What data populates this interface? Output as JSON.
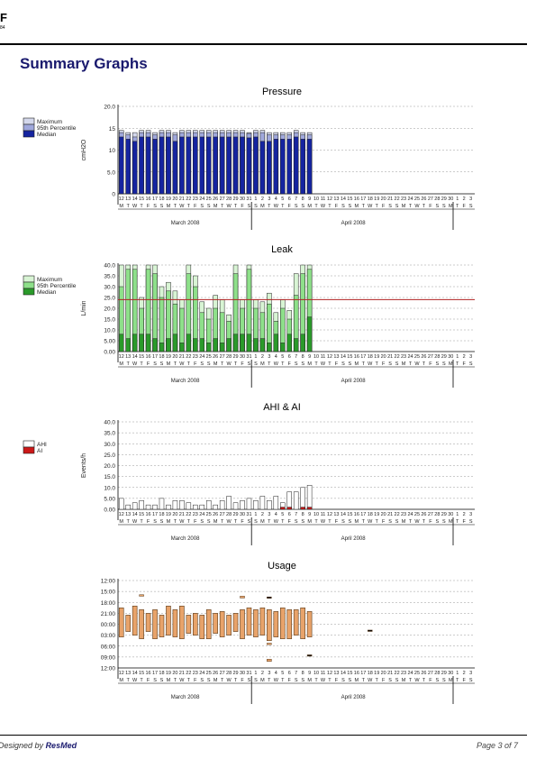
{
  "header": {
    "mark": "F",
    "sub": "84"
  },
  "page_title": "Summary Graphs",
  "footer": {
    "designed_by": "Designed by",
    "brand": "ResMed",
    "page": "Page 3 of 7"
  },
  "axis": {
    "days": [
      "12",
      "13",
      "14",
      "15",
      "16",
      "17",
      "18",
      "19",
      "20",
      "21",
      "22",
      "23",
      "24",
      "25",
      "26",
      "27",
      "28",
      "29",
      "30",
      "31",
      "1",
      "2",
      "3",
      "4",
      "5",
      "6",
      "7",
      "8",
      "9",
      "10",
      "11",
      "12",
      "13",
      "14",
      "15",
      "16",
      "17",
      "18",
      "19",
      "20",
      "21",
      "22",
      "23",
      "24",
      "25",
      "26",
      "27",
      "28",
      "29",
      "30",
      "1",
      "2",
      "3"
    ],
    "weekdays": [
      "M",
      "T",
      "W",
      "T",
      "F",
      "S",
      "S",
      "M",
      "T",
      "W",
      "T",
      "F",
      "S",
      "S",
      "M",
      "T",
      "W",
      "T",
      "F",
      "S",
      "S",
      "M",
      "T",
      "W",
      "T",
      "F",
      "S",
      "S",
      "M",
      "T",
      "W",
      "T",
      "F",
      "S",
      "S",
      "M",
      "T",
      "W",
      "T",
      "F",
      "S",
      "S",
      "M",
      "T",
      "W",
      "T",
      "F",
      "S",
      "S",
      "M",
      "T",
      "F",
      "S"
    ],
    "month1": "March 2008",
    "month2": "April 2008"
  },
  "chart_data": [
    {
      "type": "bar",
      "title": "Pressure",
      "ylabel": "cmH2O",
      "ylim": [
        0,
        20
      ],
      "yticks": [
        "0",
        "5.0",
        "10",
        "15",
        "20.0"
      ],
      "legend": [
        "Maximum",
        "95th Percentile",
        "Median"
      ],
      "colors": [
        "#d4d8ec",
        "#a0a8dc",
        "#1524a0"
      ],
      "series": [
        {
          "name": "Maximum",
          "values": [
            14.5,
            14,
            14,
            14.5,
            14.5,
            14,
            14.5,
            14.5,
            14,
            14.5,
            14.5,
            14.5,
            14.5,
            14.5,
            14.5,
            14.5,
            14.5,
            14.5,
            14.5,
            14,
            14.5,
            14.5,
            14,
            14,
            14,
            14,
            14.5,
            14,
            14
          ]
        },
        {
          "name": "95th Percentile",
          "values": [
            14,
            13.5,
            13,
            14,
            14,
            13.5,
            14,
            14,
            13.5,
            14,
            14,
            14,
            14,
            14,
            14,
            14,
            14,
            14,
            14,
            13.8,
            14,
            14,
            13.5,
            13.5,
            13.5,
            13.5,
            14,
            13.5,
            13.5
          ]
        },
        {
          "name": "Median",
          "values": [
            13,
            12.5,
            12,
            13,
            13,
            12.5,
            13,
            13,
            12,
            13,
            13,
            13,
            13,
            13,
            13,
            13,
            13,
            13,
            13,
            12.8,
            13,
            12,
            12,
            12.5,
            12.5,
            12.5,
            13,
            12.5,
            12.5
          ]
        }
      ]
    },
    {
      "type": "bar",
      "title": "Leak",
      "ylabel": "L/min",
      "ylim": [
        0,
        40
      ],
      "yticks": [
        "0.00",
        "5.00",
        "10.0",
        "15.0",
        "20.0",
        "25.0",
        "30.0",
        "35.0",
        "40.0"
      ],
      "threshold": 24,
      "legend": [
        "Maximum",
        "95th Percentile",
        "Median"
      ],
      "colors": [
        "#d8f4d4",
        "#8ee08a",
        "#2a9a2a"
      ],
      "series": [
        {
          "name": "Maximum",
          "values": [
            40,
            40,
            40,
            25,
            40,
            40,
            30,
            32,
            28,
            24,
            40,
            35,
            23,
            20,
            26,
            24,
            17,
            40,
            24,
            40,
            24,
            23,
            27,
            18,
            24,
            19,
            36,
            40,
            40
          ]
        },
        {
          "name": "95th Percentile",
          "values": [
            30,
            38,
            38,
            20,
            38,
            36,
            25,
            28,
            22,
            20,
            36,
            30,
            18,
            15,
            20,
            18,
            14,
            36,
            20,
            38,
            20,
            18,
            22,
            14,
            20,
            15,
            26,
            36,
            38
          ]
        },
        {
          "name": "Median",
          "values": [
            8,
            6,
            8,
            8,
            8,
            6,
            4,
            6,
            8,
            4,
            8,
            6,
            6,
            4,
            6,
            4,
            6,
            8,
            8,
            8,
            6,
            6,
            4,
            8,
            4,
            8,
            6,
            8,
            16
          ]
        }
      ]
    },
    {
      "type": "bar",
      "title": "AHI & AI",
      "ylabel": "Events/h",
      "ylim": [
        0,
        40
      ],
      "yticks": [
        "0.00",
        "5.00",
        "10.0",
        "15.0",
        "20.0",
        "25.0",
        "30.0",
        "35.0",
        "40.0"
      ],
      "legend": [
        "AHI",
        "AI"
      ],
      "colors": [
        "#ffffff",
        "#cc1818"
      ],
      "series": [
        {
          "name": "AHI",
          "values": [
            5,
            2,
            3,
            4,
            2,
            2,
            5,
            2,
            4,
            4,
            3,
            2,
            2,
            4,
            2,
            4,
            6,
            3,
            4,
            5,
            4,
            6,
            4,
            6,
            3,
            8,
            8,
            10,
            11
          ]
        },
        {
          "name": "AI",
          "values": [
            0,
            0,
            0,
            0,
            0,
            0,
            0,
            0,
            0,
            0,
            0,
            0,
            0,
            0,
            0,
            0,
            0,
            0,
            0,
            0,
            0,
            0,
            0,
            0,
            1,
            1,
            0,
            1,
            1
          ]
        }
      ]
    },
    {
      "type": "bar",
      "title": "Usage",
      "ylabel": "",
      "yticks": [
        "12:00",
        "09:00",
        "06:00",
        "03:00",
        "00:00",
        "21:00",
        "18:00",
        "15:00",
        "12:00"
      ],
      "colors": [
        "#e8a36a"
      ],
      "note": "floating bars: start/end on a 12:00-to-12:00 time axis (hours after noon)",
      "series": [
        {
          "name": "",
          "start": [
            7.5,
            9.5,
            7,
            8,
            9,
            8,
            9.5,
            7,
            8,
            7,
            9.5,
            9,
            9.5,
            8,
            9,
            8.5,
            9.5,
            9,
            8,
            7.5,
            8,
            7.5,
            8,
            8.5,
            7.5,
            8,
            8,
            7.5,
            8.5
          ],
          "end": [
            15.5,
            14,
            15,
            16,
            14,
            16,
            15.5,
            15,
            15.5,
            16,
            14.5,
            15,
            16,
            16,
            14.5,
            15.5,
            15,
            14,
            16,
            15,
            15.5,
            15,
            16.5,
            15.5,
            16,
            16,
            15,
            16,
            15.5
          ]
        }
      ],
      "extras": [
        {
          "day": 3,
          "start": 3.9,
          "end": 4.3
        },
        {
          "day": 18,
          "start": 4.3,
          "end": 4.8
        },
        {
          "day": 22,
          "start": 4.5,
          "end": 4.7
        },
        {
          "day": 22,
          "start": 17.2,
          "end": 17.6
        },
        {
          "day": 22,
          "start": 21.6,
          "end": 22.2
        },
        {
          "day": 28,
          "start": 20.4,
          "end": 20.6
        },
        {
          "day": 37,
          "start": 13.6,
          "end": 13.8
        }
      ]
    }
  ]
}
